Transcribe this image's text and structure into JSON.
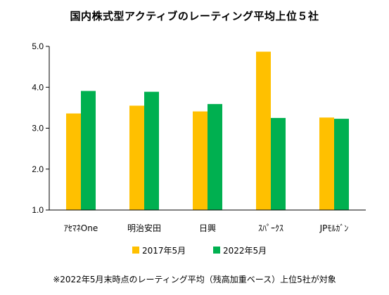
{
  "chart_data": {
    "type": "bar",
    "title": "国内株式型アクティブのレーティング平均上位５社",
    "categories": [
      "ｱｾﾏﾈOne",
      "明治安田",
      "日興",
      "ｽﾊﾟｰｸｽ",
      "JPﾓﾙｶﾞﾝ"
    ],
    "series": [
      {
        "name": "2017年5月",
        "color": "#FFC000",
        "values": [
          3.36,
          3.55,
          3.41,
          4.87,
          3.26
        ]
      },
      {
        "name": "2022年5月",
        "color": "#00B050",
        "values": [
          3.91,
          3.89,
          3.59,
          3.25,
          3.23
        ]
      }
    ],
    "ylim": [
      1.0,
      5.0
    ],
    "yticks": [
      "1.0",
      "2.0",
      "3.0",
      "4.0",
      "5.0"
    ],
    "grid": false,
    "legend_position": "bottom",
    "xlabel": "",
    "ylabel": ""
  },
  "footnote": "※2022年5月末時点のレーティング平均（残高加重ベース）上位5社が対象"
}
